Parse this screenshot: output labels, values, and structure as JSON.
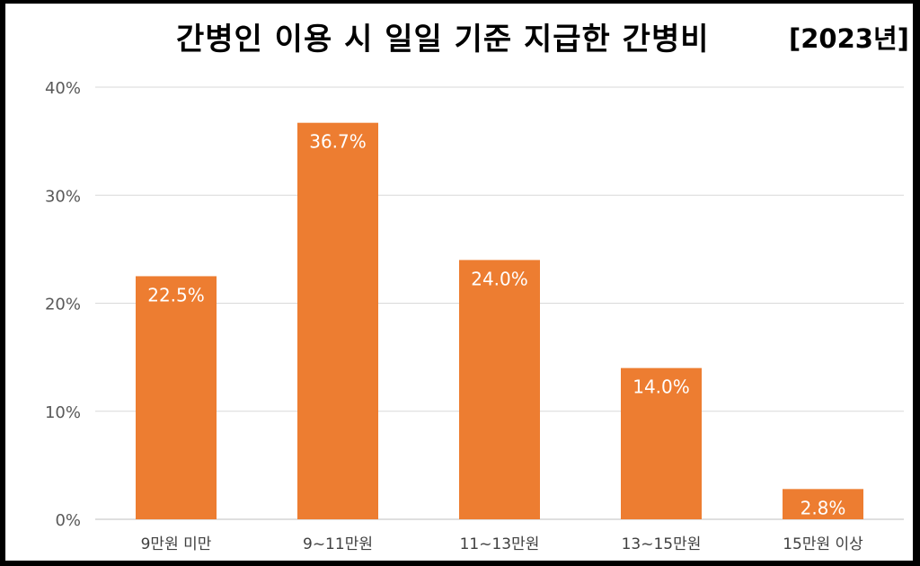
{
  "chart_data": {
    "type": "bar",
    "title": "간병인 이용 시 일일 기준 지급한 간병비",
    "subtitle": "[2023년]",
    "categories": [
      "9만원 미만",
      "9~11만원",
      "11~13만원",
      "13~15만원",
      "15만원 이상"
    ],
    "values": [
      22.5,
      36.7,
      24.0,
      14.0,
      2.8
    ],
    "data_labels": [
      "22.5%",
      "36.7%",
      "24.0%",
      "14.0%",
      "2.8%"
    ],
    "y_ticks": [
      0,
      10,
      20,
      30,
      40
    ],
    "y_tick_labels": [
      "0%",
      "10%",
      "20%",
      "30%",
      "40%"
    ],
    "ylim": [
      0,
      40
    ],
    "xlabel": "",
    "ylabel": "",
    "grid": true,
    "bar_color": "#ED7D31",
    "grid_color": "#D9D9D9",
    "label_color": "#FFFFFF"
  }
}
